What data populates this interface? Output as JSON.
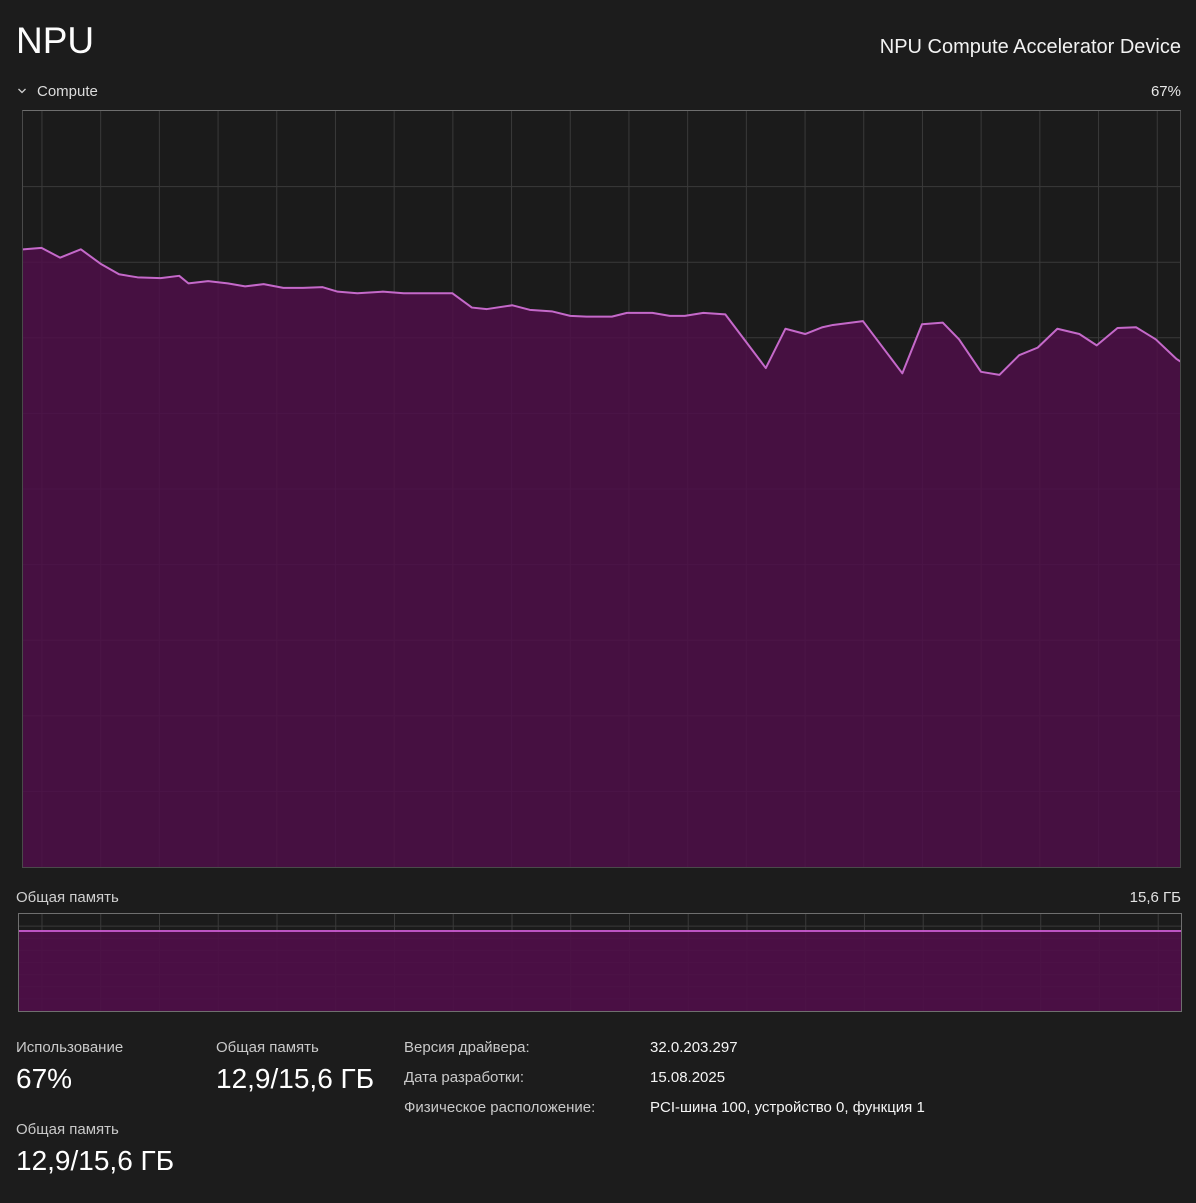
{
  "page": {
    "title": "NPU",
    "device_name": "NPU Compute Accelerator Device"
  },
  "compute_section": {
    "label": "Compute",
    "current_value": "67%",
    "chevron_icon": "chevron-down"
  },
  "memory_section": {
    "label": "Общая память",
    "max_value": "15,6 ГБ"
  },
  "stats": {
    "usage": {
      "label": "Использование",
      "value": "67%"
    },
    "shared_memory_top": {
      "label": "Общая память",
      "value": "12,9/15,6 ГБ"
    },
    "shared_memory_bottom": {
      "label": "Общая память",
      "value": "12,9/15,6 ГБ"
    },
    "details": [
      {
        "label": "Версия драйвера:",
        "value": "32.0.203.297"
      },
      {
        "label": "Дата разработки:",
        "value": "15.08.2025"
      },
      {
        "label": "Физическое расположение:",
        "value": "PCI-шина 100, устройство 0, функция 1"
      }
    ]
  },
  "colors": {
    "page_bg": "#1c1c1c",
    "chart_bg": "#1b1b1b",
    "grid": "#3a3a3a",
    "accent_line": "#c569ca",
    "accent_fill": "#4e0f48",
    "memory_line": "#cb59d2",
    "label_gray": "#c9c9c9",
    "text_white": "#ffffff"
  },
  "chart_data": [
    {
      "type": "area",
      "title": "Compute utilization",
      "unit": "%",
      "ylim": [
        0,
        100
      ],
      "grid": true,
      "x_gridline_count": 20,
      "y_divisions": 10,
      "current_percent": 67,
      "points": [
        [
          0,
          81.7
        ],
        [
          1.6,
          81.9
        ],
        [
          3.2,
          80.6
        ],
        [
          5.0,
          81.7
        ],
        [
          6.7,
          79.8
        ],
        [
          8.3,
          78.4
        ],
        [
          9.9,
          78.0
        ],
        [
          11.9,
          77.9
        ],
        [
          13.5,
          78.2
        ],
        [
          14.3,
          77.2
        ],
        [
          16.0,
          77.5
        ],
        [
          17.7,
          77.2
        ],
        [
          19.2,
          76.8
        ],
        [
          20.8,
          77.1
        ],
        [
          22.5,
          76.6
        ],
        [
          24.2,
          76.6
        ],
        [
          25.9,
          76.7
        ],
        [
          27.2,
          76.1
        ],
        [
          28.9,
          75.9
        ],
        [
          31.1,
          76.1
        ],
        [
          32.9,
          75.9
        ],
        [
          37.1,
          75.9
        ],
        [
          38.8,
          74.0
        ],
        [
          40.1,
          73.8
        ],
        [
          42.3,
          74.3
        ],
        [
          43.8,
          73.7
        ],
        [
          45.7,
          73.5
        ],
        [
          47.3,
          72.9
        ],
        [
          48.7,
          72.8
        ],
        [
          50.9,
          72.8
        ],
        [
          52.2,
          73.3
        ],
        [
          54.4,
          73.3
        ],
        [
          55.9,
          72.9
        ],
        [
          57.2,
          72.9
        ],
        [
          58.8,
          73.3
        ],
        [
          60.7,
          73.1
        ],
        [
          64.2,
          66.0
        ],
        [
          65.9,
          71.2
        ],
        [
          67.6,
          70.5
        ],
        [
          69.1,
          71.4
        ],
        [
          70.0,
          71.7
        ],
        [
          72.6,
          72.2
        ],
        [
          76.0,
          65.3
        ],
        [
          77.7,
          71.8
        ],
        [
          79.5,
          72.0
        ],
        [
          80.9,
          69.8
        ],
        [
          82.8,
          65.5
        ],
        [
          84.4,
          65.1
        ],
        [
          86.1,
          67.7
        ],
        [
          87.7,
          68.7
        ],
        [
          89.4,
          71.2
        ],
        [
          91.3,
          70.5
        ],
        [
          92.8,
          69.0
        ],
        [
          94.6,
          71.3
        ],
        [
          96.2,
          71.4
        ],
        [
          97.9,
          69.8
        ],
        [
          99.7,
          67.2
        ],
        [
          100,
          66.9
        ]
      ]
    },
    {
      "type": "area",
      "title": "Общая память",
      "unit": "ГБ",
      "ylim": [
        0,
        15.6
      ],
      "used_gb": 12.9,
      "total_gb": 15.6,
      "fill_percent": 82.7,
      "shape": "flat",
      "grid": true,
      "y_divisions": 8
    }
  ]
}
